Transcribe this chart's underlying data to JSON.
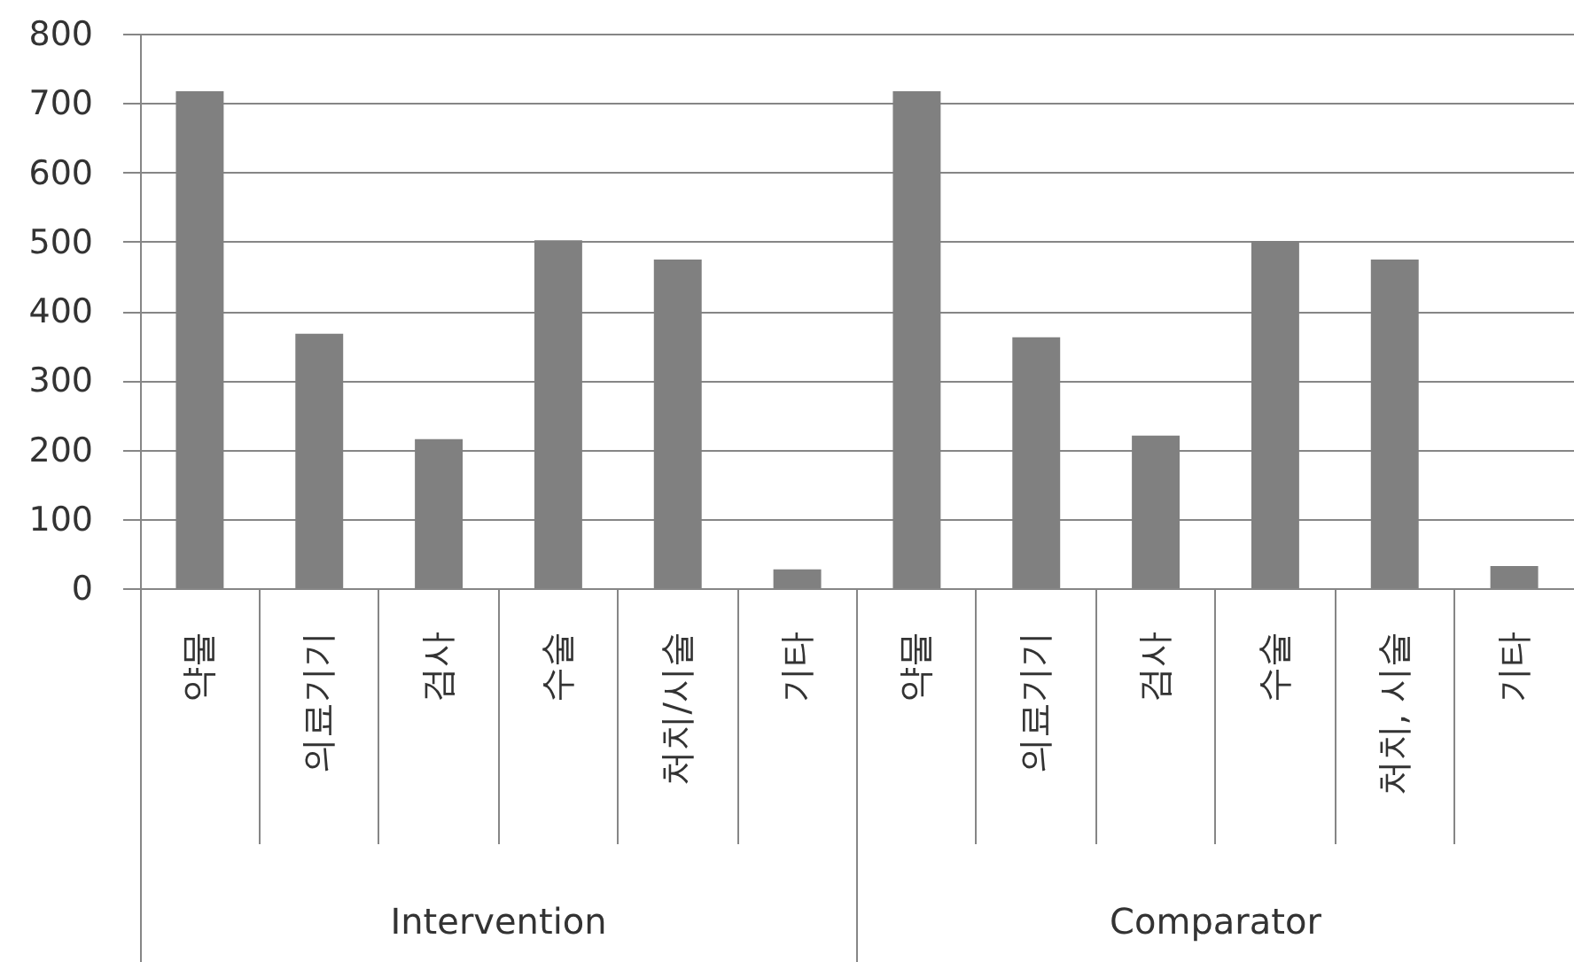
{
  "chart_data": {
    "type": "bar",
    "categories": [
      "약물",
      "의료기기",
      "검사",
      "수술",
      "처치/시술",
      "기타",
      "약물",
      "의료기기",
      "검사",
      "수술",
      "처치, 시술",
      "기타"
    ],
    "values": [
      717,
      367,
      215,
      502,
      474,
      27,
      717,
      362,
      220,
      501,
      474,
      32
    ],
    "color": "#808080",
    "ylim": [
      0,
      800
    ],
    "yticks": [
      0,
      100,
      200,
      300,
      400,
      500,
      600,
      700,
      800
    ],
    "grid": "y",
    "annotations": [
      "Intervention",
      "Comparator"
    ]
  }
}
